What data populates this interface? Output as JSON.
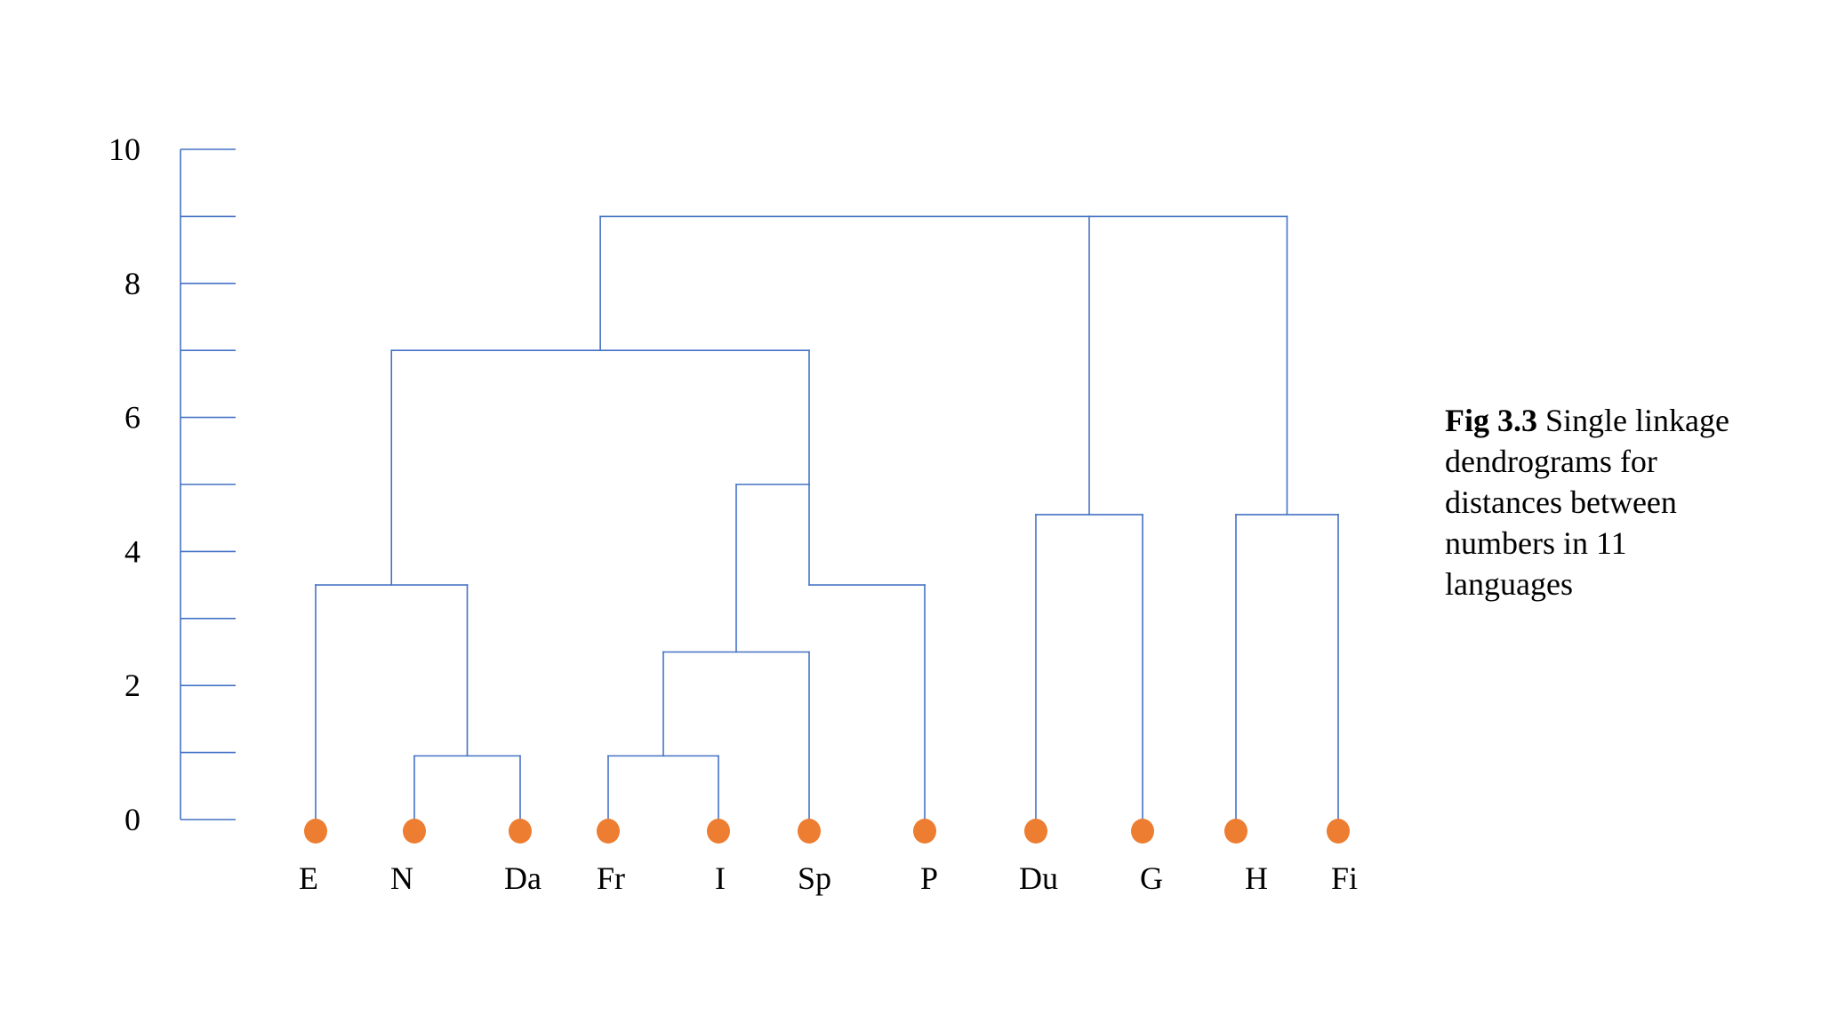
{
  "caption": {
    "label": "Fig 3.3",
    "text": "Single linkage dendrograms for distances between numbers in 11 languages"
  },
  "colors": {
    "line": "#4472c4",
    "leaf": "#ed7d31",
    "text": "#000000"
  },
  "chart_data": {
    "type": "dendrogram",
    "linkage": "single",
    "y_axis": {
      "range": [
        0,
        10
      ],
      "ticks": [
        0,
        1,
        2,
        3,
        4,
        5,
        6,
        7,
        8,
        9,
        10
      ],
      "labeled_ticks": [
        0,
        2,
        4,
        6,
        8,
        10
      ]
    },
    "leaves": [
      "E",
      "N",
      "Da",
      "Fr",
      "I",
      "Sp",
      "P",
      "Du",
      "G",
      "H",
      "Fi"
    ],
    "merges": [
      {
        "id": "m_n_da",
        "left": "N",
        "right": "Da",
        "height": 0.95
      },
      {
        "id": "m_fr_i",
        "left": "Fr",
        "right": "I",
        "height": 0.95
      },
      {
        "id": "m_fri_sp",
        "left": "m_fr_i",
        "right": "Sp",
        "height": 2.5
      },
      {
        "id": "m_e_nda",
        "left": "E",
        "right": "m_n_da",
        "height": 3.5
      },
      {
        "id": "m_frisp_p",
        "left": "m_fri_sp",
        "right": "P",
        "height": 3.5
      },
      {
        "id": "m_du_g",
        "left": "Du",
        "right": "G",
        "height": 4.55
      },
      {
        "id": "m_h_fi",
        "left": "H",
        "right": "Fi",
        "height": 4.55
      },
      {
        "id": "m_romance",
        "left": "m_fri_sp",
        "right": "m_frisp_p",
        "height": 5.0,
        "note": ""
      },
      {
        "id": "m_left",
        "left": "m_e_nda",
        "right": "m_romance",
        "height": 7.0
      },
      {
        "id": "m_top",
        "left": "m_left",
        "right": "m_du_g",
        "right2": "m_h_fi",
        "height": 9.0
      }
    ]
  }
}
